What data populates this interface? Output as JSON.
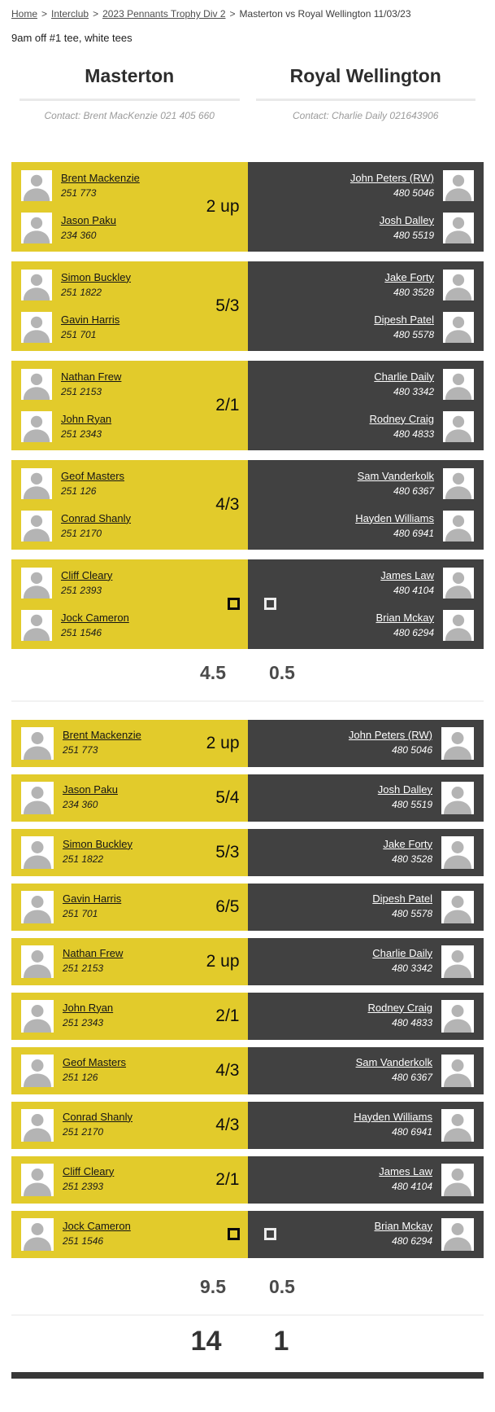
{
  "breadcrumb": {
    "separator": ">",
    "items": [
      {
        "label": "Home",
        "link": true
      },
      {
        "label": "Interclub",
        "link": true
      },
      {
        "label": "2023 Pennants Trophy Div 2",
        "link": true
      },
      {
        "label": "Masterton vs Royal Wellington 11/03/23",
        "link": false
      }
    ]
  },
  "tee_info": "9am off #1 tee, white tees",
  "teams": {
    "home": {
      "name": "Masterton",
      "contact": "Contact: Brent MacKenzie 021 405 660"
    },
    "away": {
      "name": "Royal Wellington",
      "contact": "Contact: Charlie Daily 021643906"
    }
  },
  "colors": {
    "home": "#e2cb2b",
    "away": "#414141",
    "home_checkbox_border": "#0a0a0a",
    "away_checkbox_border": "#ececec"
  },
  "pairs": {
    "matches": [
      {
        "home_players": [
          {
            "name": "Brent Mackenzie",
            "number": "251 773"
          },
          {
            "name": "Jason Paku",
            "number": "234 360"
          }
        ],
        "away_players": [
          {
            "name": "John Peters (RW)",
            "number": "480 5046"
          },
          {
            "name": "Josh Dalley",
            "number": "480 5519"
          }
        ],
        "result": "2 up",
        "pending": false
      },
      {
        "home_players": [
          {
            "name": "Simon Buckley",
            "number": "251 1822"
          },
          {
            "name": "Gavin Harris",
            "number": "251 701"
          }
        ],
        "away_players": [
          {
            "name": "Jake Forty",
            "number": "480 3528"
          },
          {
            "name": "Dipesh Patel",
            "number": "480 5578"
          }
        ],
        "result": "5/3",
        "pending": false
      },
      {
        "home_players": [
          {
            "name": "Nathan Frew",
            "number": "251 2153"
          },
          {
            "name": "John Ryan",
            "number": "251 2343"
          }
        ],
        "away_players": [
          {
            "name": "Charlie Daily",
            "number": "480 3342"
          },
          {
            "name": "Rodney Craig",
            "number": "480 4833"
          }
        ],
        "result": "2/1",
        "pending": false
      },
      {
        "home_players": [
          {
            "name": "Geof Masters",
            "number": "251 126"
          },
          {
            "name": "Conrad Shanly",
            "number": "251 2170"
          }
        ],
        "away_players": [
          {
            "name": "Sam Vanderkolk",
            "number": "480 6367"
          },
          {
            "name": "Hayden Williams",
            "number": "480 6941"
          }
        ],
        "result": "4/3",
        "pending": false
      },
      {
        "home_players": [
          {
            "name": "Cliff Cleary",
            "number": "251 2393"
          },
          {
            "name": "Jock Cameron",
            "number": "251 1546"
          }
        ],
        "away_players": [
          {
            "name": "James Law",
            "number": "480 4104"
          },
          {
            "name": "Brian Mckay",
            "number": "480 6294"
          }
        ],
        "result": "",
        "pending": true
      }
    ],
    "totals": {
      "home": "4.5",
      "away": "0.5"
    }
  },
  "singles": {
    "matches": [
      {
        "home_players": [
          {
            "name": "Brent Mackenzie",
            "number": "251 773"
          }
        ],
        "away_players": [
          {
            "name": "John Peters (RW)",
            "number": "480 5046"
          }
        ],
        "result": "2 up",
        "pending": false
      },
      {
        "home_players": [
          {
            "name": "Jason Paku",
            "number": "234 360"
          }
        ],
        "away_players": [
          {
            "name": "Josh Dalley",
            "number": "480 5519"
          }
        ],
        "result": "5/4",
        "pending": false
      },
      {
        "home_players": [
          {
            "name": "Simon Buckley",
            "number": "251 1822"
          }
        ],
        "away_players": [
          {
            "name": "Jake Forty",
            "number": "480 3528"
          }
        ],
        "result": "5/3",
        "pending": false
      },
      {
        "home_players": [
          {
            "name": "Gavin Harris",
            "number": "251 701"
          }
        ],
        "away_players": [
          {
            "name": "Dipesh Patel",
            "number": "480 5578"
          }
        ],
        "result": "6/5",
        "pending": false
      },
      {
        "home_players": [
          {
            "name": "Nathan Frew",
            "number": "251 2153"
          }
        ],
        "away_players": [
          {
            "name": "Charlie Daily",
            "number": "480 3342"
          }
        ],
        "result": "2 up",
        "pending": false
      },
      {
        "home_players": [
          {
            "name": "John Ryan",
            "number": "251 2343"
          }
        ],
        "away_players": [
          {
            "name": "Rodney Craig",
            "number": "480 4833"
          }
        ],
        "result": "2/1",
        "pending": false
      },
      {
        "home_players": [
          {
            "name": "Geof Masters",
            "number": "251 126"
          }
        ],
        "away_players": [
          {
            "name": "Sam Vanderkolk",
            "number": "480 6367"
          }
        ],
        "result": "4/3",
        "pending": false
      },
      {
        "home_players": [
          {
            "name": "Conrad Shanly",
            "number": "251 2170"
          }
        ],
        "away_players": [
          {
            "name": "Hayden Williams",
            "number": "480 6941"
          }
        ],
        "result": "4/3",
        "pending": false
      },
      {
        "home_players": [
          {
            "name": "Cliff Cleary",
            "number": "251 2393"
          }
        ],
        "away_players": [
          {
            "name": "James Law",
            "number": "480 4104"
          }
        ],
        "result": "2/1",
        "pending": false
      },
      {
        "home_players": [
          {
            "name": "Jock Cameron",
            "number": "251 1546"
          }
        ],
        "away_players": [
          {
            "name": "Brian Mckay",
            "number": "480 6294"
          }
        ],
        "result": "",
        "pending": true
      }
    ],
    "totals": {
      "home": "9.5",
      "away": "0.5"
    }
  },
  "grand_totals": {
    "home": "14",
    "away": "1"
  }
}
